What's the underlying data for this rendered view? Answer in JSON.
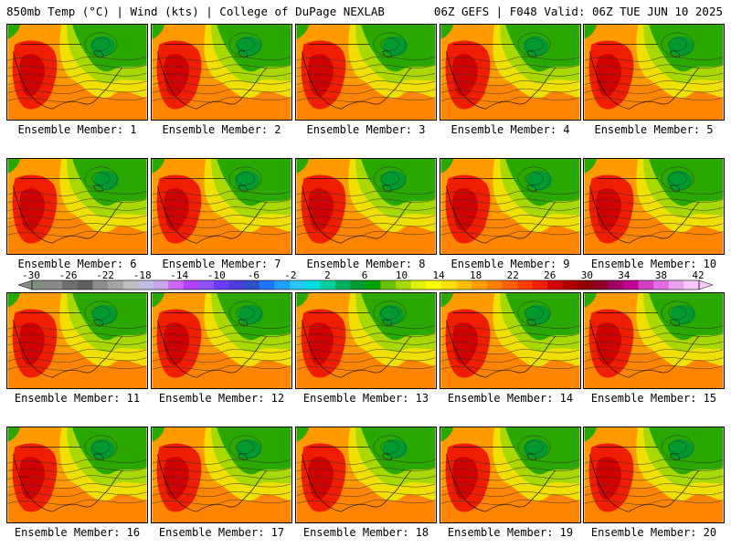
{
  "header": {
    "left": "850mb Temp (°C) | Wind (kts) | College of DuPage NEXLAB",
    "right": "06Z GEFS | F048 Valid: 06Z TUE JUN 10 2025"
  },
  "caption_prefix": "Ensemble Member:",
  "members": [
    1,
    2,
    3,
    4,
    5,
    6,
    7,
    8,
    9,
    10,
    11,
    12,
    13,
    14,
    15,
    16,
    17,
    18,
    19,
    20
  ],
  "colorbar": {
    "labels": [
      "-30",
      "-26",
      "-22",
      "-18",
      "-14",
      "-10",
      "-6",
      "-2",
      "2",
      "6",
      "10",
      "14",
      "18",
      "22",
      "26",
      "30",
      "34",
      "38",
      "42"
    ],
    "colors": [
      "#7f8f7f",
      "#8a8a8a",
      "#6f6f6f",
      "#5f5f5f",
      "#8c8c8c",
      "#a3a3a3",
      "#bdbdbd",
      "#bfbfe6",
      "#c9a6e8",
      "#cc66ff",
      "#b040ff",
      "#8c52ff",
      "#6a3cff",
      "#4b3cdc",
      "#3050c8",
      "#1e78ff",
      "#1ea0ff",
      "#28c8ff",
      "#00e0e0",
      "#00d0a0",
      "#00b060",
      "#009a30",
      "#00a000",
      "#68c000",
      "#a8d800",
      "#e0f000",
      "#ffff00",
      "#ffe000",
      "#ffc000",
      "#ffa000",
      "#ff8000",
      "#ff6000",
      "#ff4000",
      "#f01e00",
      "#d00000",
      "#b00000",
      "#900000",
      "#8c0028",
      "#a00064",
      "#c00090",
      "#d040c0",
      "#e070e0",
      "#f0a0f0",
      "#f8c8f8"
    ]
  }
}
